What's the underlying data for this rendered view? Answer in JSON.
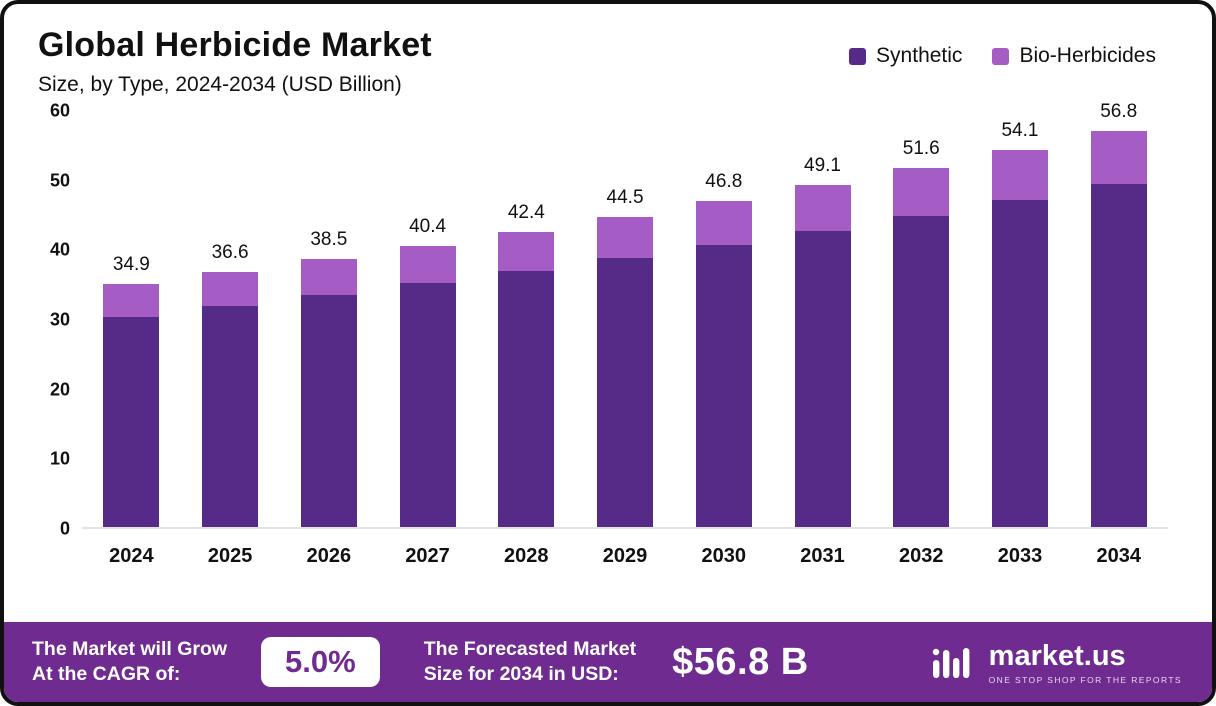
{
  "header": {
    "title": "Global Herbicide Market",
    "subtitle": "Size, by Type, 2024-2034 (USD Billion)"
  },
  "chart_data": {
    "type": "bar",
    "stacked": true,
    "title": "Global Herbicide Market Size, by Type, 2024-2034 (USD Billion)",
    "categories": [
      "2024",
      "2025",
      "2026",
      "2027",
      "2028",
      "2029",
      "2030",
      "2031",
      "2032",
      "2033",
      "2034"
    ],
    "series": [
      {
        "name": "Synthetic",
        "color": "#562a87",
        "values": [
          30.2,
          31.7,
          33.3,
          35.0,
          36.7,
          38.6,
          40.5,
          42.5,
          44.7,
          46.9,
          49.2
        ]
      },
      {
        "name": "Bio-Herbicides",
        "color": "#a55cc5",
        "values": [
          4.7,
          4.9,
          5.2,
          5.4,
          5.7,
          5.9,
          6.3,
          6.6,
          6.9,
          7.2,
          7.6
        ]
      }
    ],
    "totals": [
      34.9,
      36.6,
      38.5,
      40.4,
      42.4,
      44.5,
      46.8,
      49.1,
      51.6,
      54.1,
      56.8
    ],
    "xlabel": "",
    "ylabel": "",
    "ylim": [
      0,
      60
    ],
    "yticks": [
      0,
      10,
      20,
      30,
      40,
      50,
      60
    ],
    "grid": false,
    "legend_position": "top-right"
  },
  "footer": {
    "cagr_label_line1": "The Market will Grow",
    "cagr_label_line2": "At the CAGR of:",
    "cagr_value": "5.0%",
    "forecast_label_line1": "The Forecasted Market",
    "forecast_label_line2": "Size for 2034 in USD:",
    "forecast_value": "$56.8 B",
    "brand_name": "market.us",
    "brand_tagline": "ONE STOP SHOP FOR THE REPORTS"
  },
  "colors": {
    "synthetic": "#562a87",
    "bio_herbicides": "#a55cc5",
    "footer_bg": "#6f2b8f",
    "border": "#111111",
    "text": "#111111"
  }
}
